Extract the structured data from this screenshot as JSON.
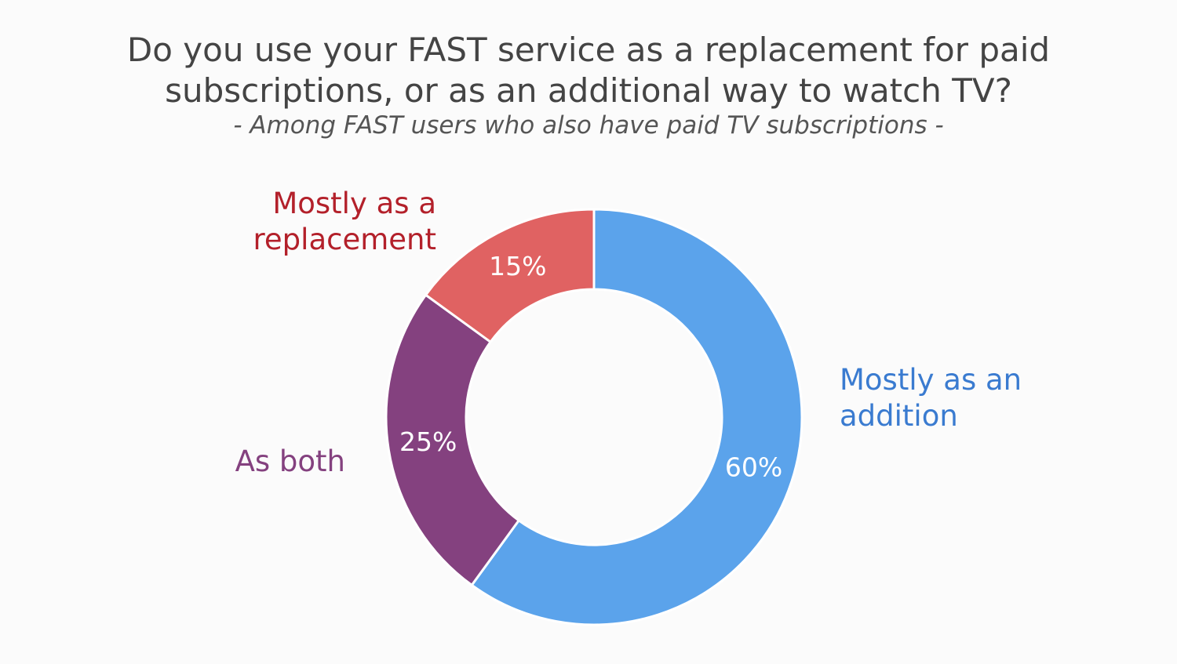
{
  "chart_data": {
    "type": "donut",
    "title": "Do you use your FAST service as a replacement for paid subscriptions, or as an additional way to watch TV?",
    "subtitle": "- Among FAST users who also have paid TV subscriptions -",
    "categories": [
      "Mostly as an addition",
      "As both",
      "Mostly as a replacement"
    ],
    "values": [
      60,
      25,
      15
    ],
    "value_labels": [
      "60%",
      "25%",
      "15%"
    ],
    "colors": [
      "#5ba3eb",
      "#84417f",
      "#e06262"
    ],
    "label_colors": [
      "#3a7bd0",
      "#84417f",
      "#b3202a"
    ]
  }
}
